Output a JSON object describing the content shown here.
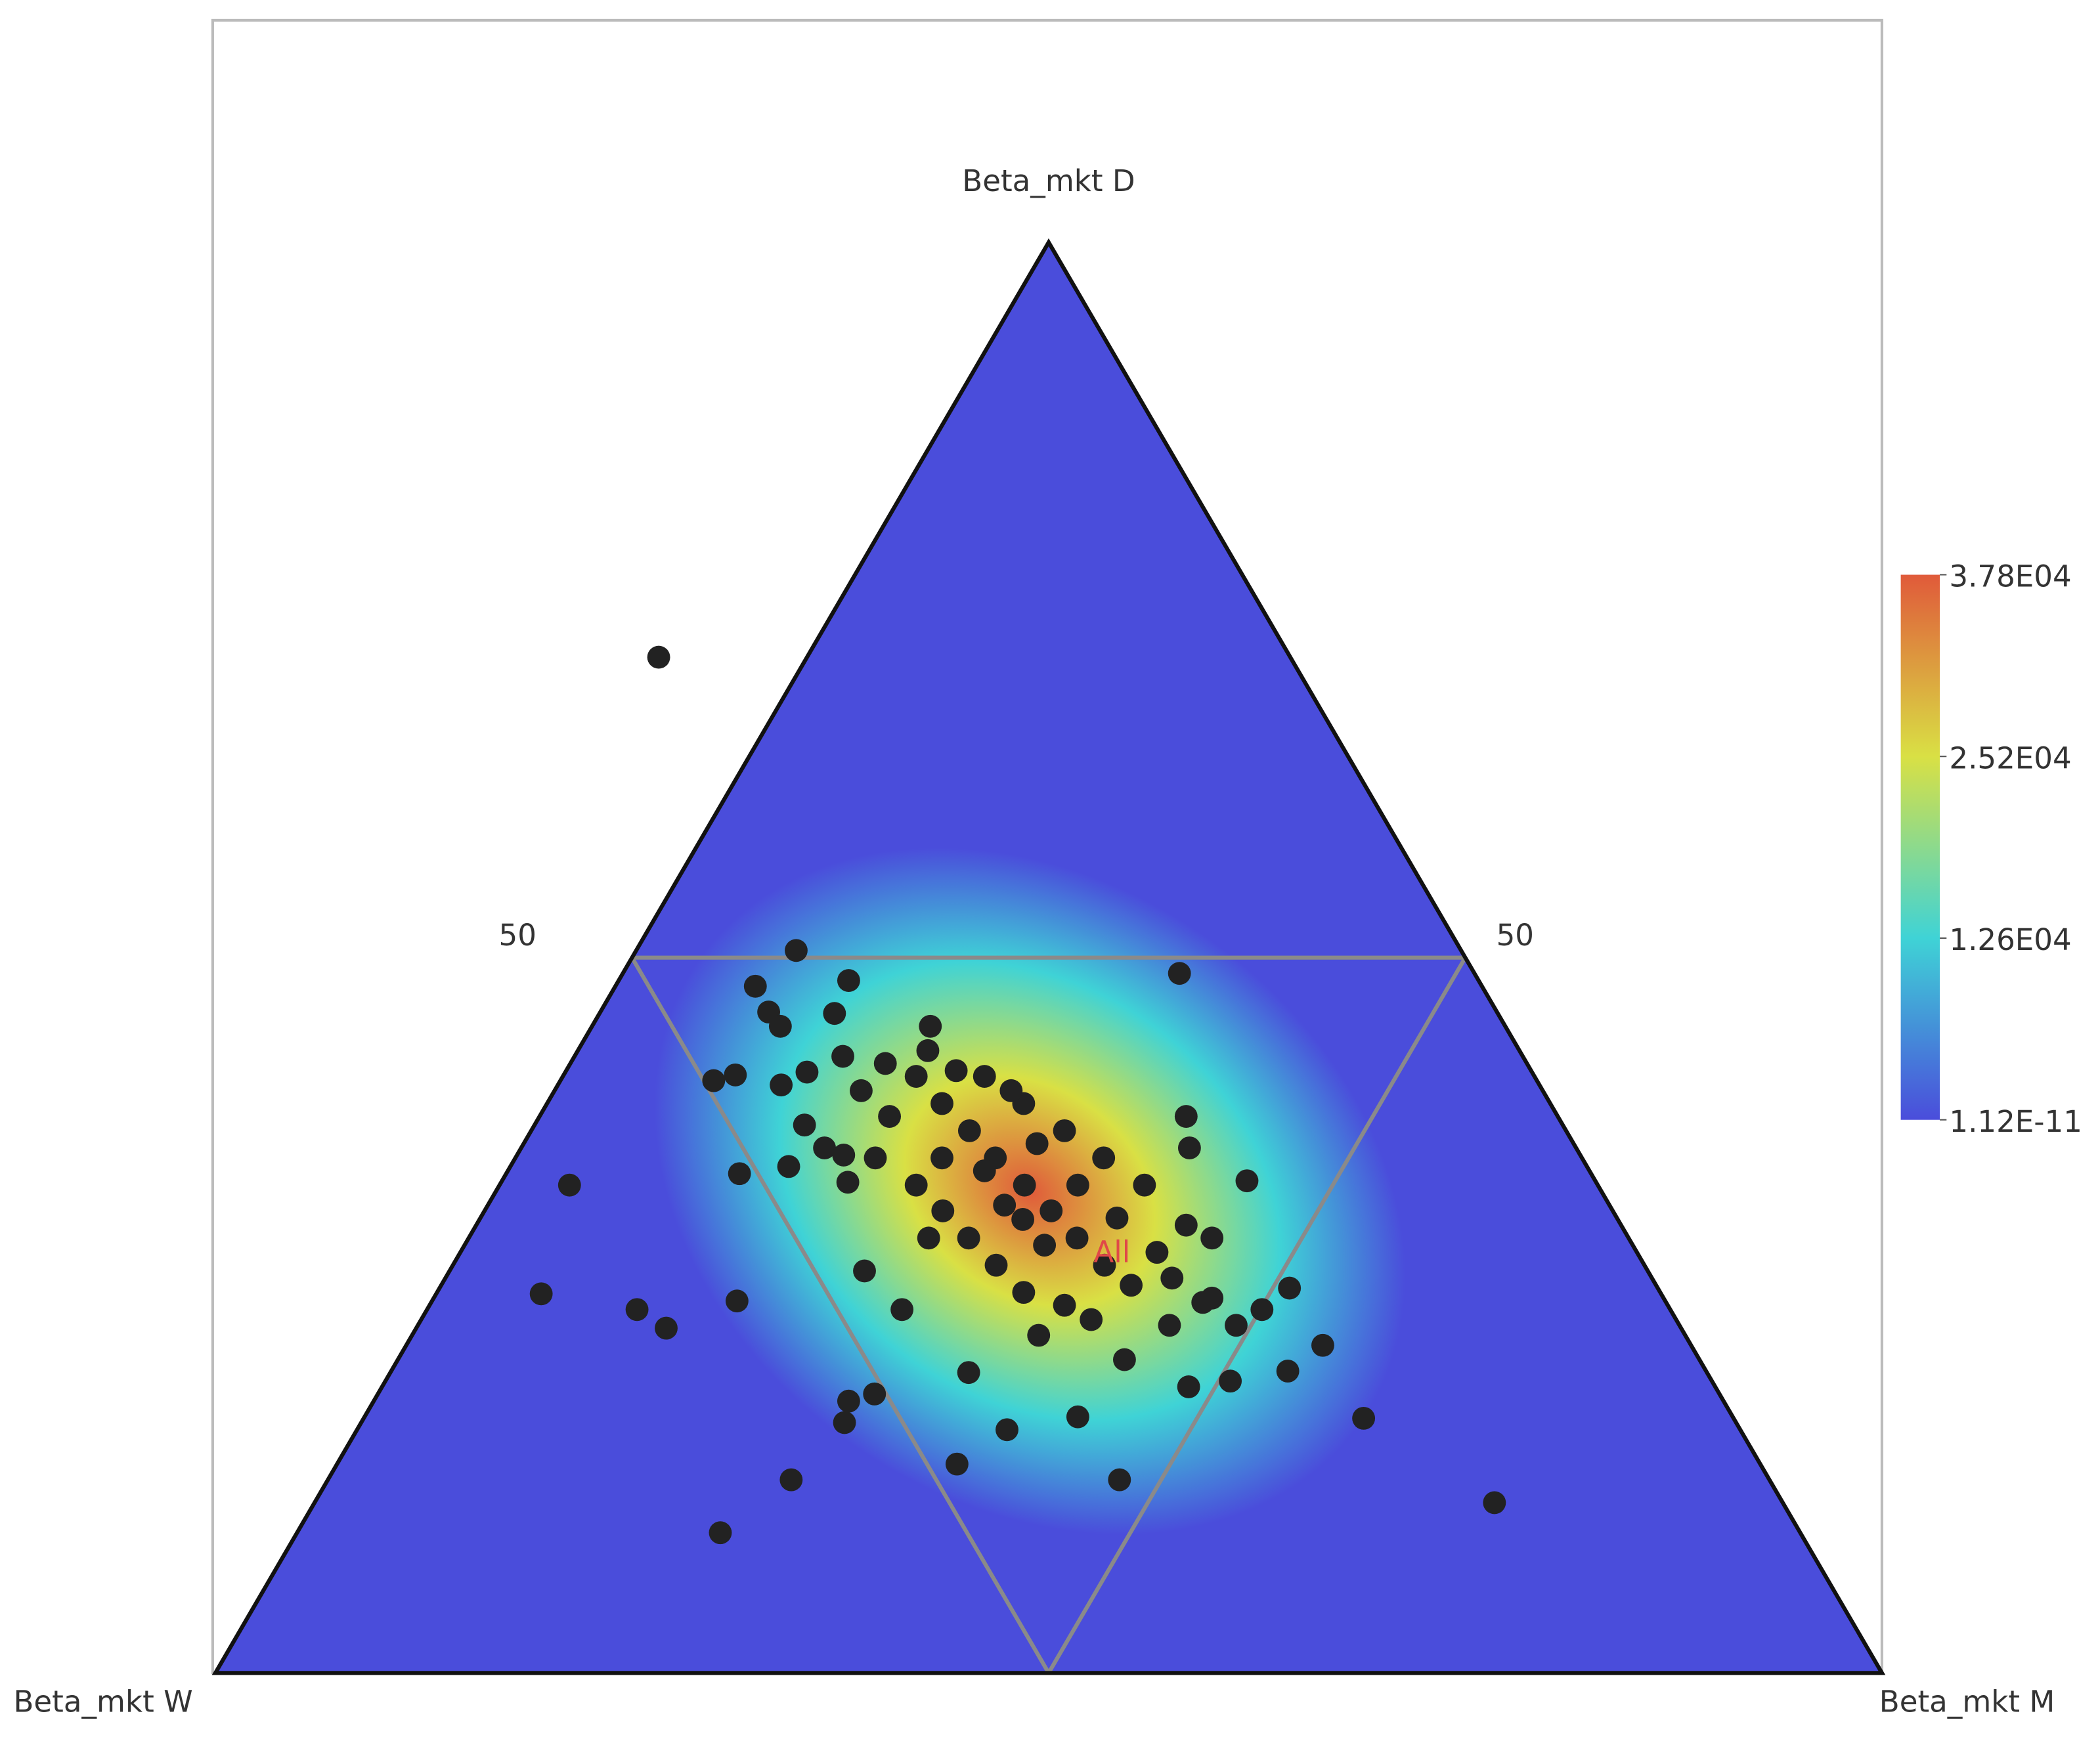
{
  "chart_data": {
    "type": "ternary",
    "axes": {
      "top": {
        "label": "Beta_mkt D"
      },
      "left": {
        "label": "Beta_mkt W"
      },
      "right": {
        "label": "Beta_mkt M"
      }
    },
    "ticks": [
      50
    ],
    "grid": true,
    "colorbar": {
      "range": [
        1.12e-11,
        37800
      ],
      "colors": [
        "#4a4ddb",
        "#3fd3d6",
        "#d9e044",
        "#e05a3a"
      ],
      "ticks": [
        {
          "value": 37800,
          "label": "3.78E04"
        },
        {
          "value": 25200,
          "label": "2.52E04"
        },
        {
          "value": 12600,
          "label": "1.26E04"
        },
        {
          "value": 1.12e-11,
          "label": "1.12E-11"
        }
      ]
    },
    "series": [
      {
        "name": "All",
        "color": "#222222",
        "d": [
          71.0,
          50.5,
          48.4,
          48.9,
          48.0,
          46.2,
          45.2,
          46.1,
          45.2,
          43.5,
          41.4,
          41.8,
          41.1,
          42.0,
          43.1,
          42.6,
          38.3,
          36.7,
          35.4,
          36.2,
          34.3,
          34.9,
          34.1,
          26.5,
          25.4,
          24.1,
          26.0,
          28.1,
          25.4,
          38.9,
          36.7,
          34.4,
          26.9,
          25.4,
          22.9,
          21.1,
          20.4,
          20.0,
          17.8,
          11.9,
          21.0,
          17.0,
          17.9,
          13.5,
          14.6,
          19.5,
          19.0,
          17.5,
          13.5,
          9.8,
          23.6,
          21.9,
          24.3,
          25.9,
          24.3,
          39.8,
          37.9,
          36.0,
          34.1,
          32.3,
          30.4,
          28.5,
          27.1,
          29.4,
          31.3,
          30.4,
          34.1,
          36.0,
          37.9,
          39.8,
          41.7,
          36.0,
          34.1,
          32.3,
          30.4,
          28.5,
          26.6,
          25.7,
          24.7,
          38.9,
          40.7,
          41.7,
          42.1,
          40.7,
          37.0,
          32.7,
          29.9,
          31.8,
          27.6,
          26.2,
          36.0,
          30.4,
          35.1,
          34.1,
          31.7
        ],
        "m": [
          -8.9,
          9.6,
          13.8,
          33.4,
          8.4,
          10.1,
          11.3,
          14.1,
          20.3,
          21.0,
          9.2,
          10.3,
          13.4,
          14.5,
          16.1,
          18.9,
          16.2,
          18.2,
          16.7,
          19.6,
          20.8,
          14.0,
          4.2,
          6.3,
          12.6,
          15.0,
          18.3,
          24.9,
          28.5,
          38.8,
          40.1,
          44.7,
          51.0,
          50.1,
          55.0,
          53.8,
          50.7,
          48.4,
          60.0,
          70.8,
          34.7,
          39.0,
          42.8,
          47.5,
          37.2,
          29.8,
          28.5,
          29.0,
          27.8,
          25.4,
          37.6,
          43.6,
          45.1,
          46.3,
          49.1,
          23.7,
          26.3,
          28.8,
          31.5,
          34.0,
          36.5,
          39.1,
          41.4,
          41.8,
          42.6,
          44.6,
          38.7,
          35.3,
          32.0,
          28.6,
          25.3,
          25.6,
          25.0,
          27.5,
          30.0,
          32.6,
          35.2,
          38.1,
          40.2,
          21.0,
          18.4,
          21.2,
          23.4,
          27.4,
          30.8,
          31.0,
          34.8,
          38.2,
          43.6,
          46.7,
          21.6,
          27.6,
          28.6,
          34.7,
          32.6
        ],
        "w": [
          37.9,
          39.9,
          37.8,
          17.7,
          43.6,
          43.7,
          43.5,
          39.8,
          34.5,
          35.5,
          49.4,
          47.9,
          45.5,
          43.5,
          40.8,
          38.5,
          45.5,
          45.1,
          47.9,
          44.2,
          44.9,
          51.1,
          61.7,
          67.2,
          62.0,
          60.9,
          55.7,
          47.0,
          46.1,
          22.3,
          23.2,
          20.9,
          22.1,
          24.5,
          22.1,
          25.1,
          28.9,
          31.6,
          22.2,
          17.3,
          44.3,
          44.0,
          39.3,
          39.0,
          48.2,
          50.7,
          52.5,
          53.5,
          58.7,
          64.8,
          38.8,
          34.5,
          30.6,
          27.8,
          26.6,
          36.5,
          35.8,
          35.2,
          34.4,
          33.7,
          33.1,
          32.4,
          31.5,
          28.8,
          26.1,
          25.0,
          27.2,
          28.7,
          30.1,
          31.6,
          33.0,
          38.4,
          40.9,
          40.2,
          39.6,
          38.9,
          38.2,
          36.2,
          35.1,
          40.1,
          40.9,
          37.1,
          34.5,
          31.9,
          32.2,
          36.3,
          35.3,
          30.0,
          28.8,
          27.1,
          42.4,
          42.0,
          36.3,
          31.2,
          35.7
        ]
      }
    ]
  }
}
